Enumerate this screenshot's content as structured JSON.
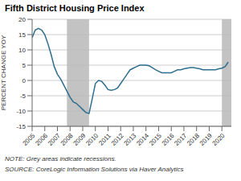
{
  "chart_data": {
    "type": "line",
    "title": "Fifth District Housing Price Index",
    "ylabel": "PERCENT CHANGE YOY",
    "annotations": [
      "NOTE: Grey areas indicate recessions.",
      "SOURCE: CoreLogic Information Solutions via Haver Analytics"
    ],
    "recessions": [
      {
        "start": 2007.75,
        "end": 2009.5,
        "color": "#b8b8b8"
      },
      {
        "start": 2020.0,
        "end": 2020.75,
        "color": "#b8b8b8"
      }
    ],
    "x": [
      2005.0,
      2005.25,
      2005.5,
      2005.75,
      2006.0,
      2006.25,
      2006.5,
      2006.75,
      2007.0,
      2007.25,
      2007.5,
      2007.75,
      2008.0,
      2008.25,
      2008.5,
      2008.75,
      2009.0,
      2009.25,
      2009.5,
      2009.75,
      2010.0,
      2010.25,
      2010.5,
      2010.75,
      2011.0,
      2011.25,
      2011.5,
      2011.75,
      2012.0,
      2012.25,
      2012.5,
      2012.75,
      2013.0,
      2013.25,
      2013.5,
      2013.75,
      2014.0,
      2014.25,
      2014.5,
      2014.75,
      2015.0,
      2015.25,
      2015.5,
      2015.75,
      2016.0,
      2016.25,
      2016.5,
      2016.75,
      2017.0,
      2017.25,
      2017.5,
      2017.75,
      2018.0,
      2018.25,
      2018.5,
      2018.75,
      2019.0,
      2019.25,
      2019.5,
      2019.75,
      2020.0,
      2020.25,
      2020.5
    ],
    "values": [
      14.0,
      16.5,
      17.0,
      16.5,
      15.0,
      12.0,
      8.5,
      4.5,
      2.0,
      0.5,
      -1.5,
      -3.5,
      -5.5,
      -7.0,
      -7.5,
      -8.5,
      -9.5,
      -10.5,
      -10.8,
      -6.0,
      -1.0,
      0.0,
      -0.3,
      -1.5,
      -3.0,
      -3.2,
      -3.0,
      -2.5,
      -1.0,
      0.5,
      2.0,
      3.5,
      4.0,
      4.5,
      5.0,
      5.0,
      5.0,
      4.8,
      4.2,
      3.5,
      3.0,
      2.5,
      2.5,
      2.5,
      2.5,
      3.0,
      3.5,
      3.5,
      3.8,
      4.0,
      4.2,
      4.2,
      4.0,
      3.8,
      3.5,
      3.5,
      3.5,
      3.5,
      3.5,
      3.8,
      4.0,
      4.5,
      6.0
    ],
    "color": "#2e6e8e",
    "xlim": [
      2005.0,
      2020.75
    ],
    "xticks": [
      2005,
      2006,
      2007,
      2008,
      2009,
      2010,
      2011,
      2012,
      2013,
      2014,
      2015,
      2016,
      2017,
      2018,
      2019,
      2020
    ],
    "ylim": [
      -15,
      20
    ],
    "yticks": [
      -15,
      -10,
      -5,
      0,
      5,
      10,
      15,
      20
    ],
    "grid": true
  }
}
